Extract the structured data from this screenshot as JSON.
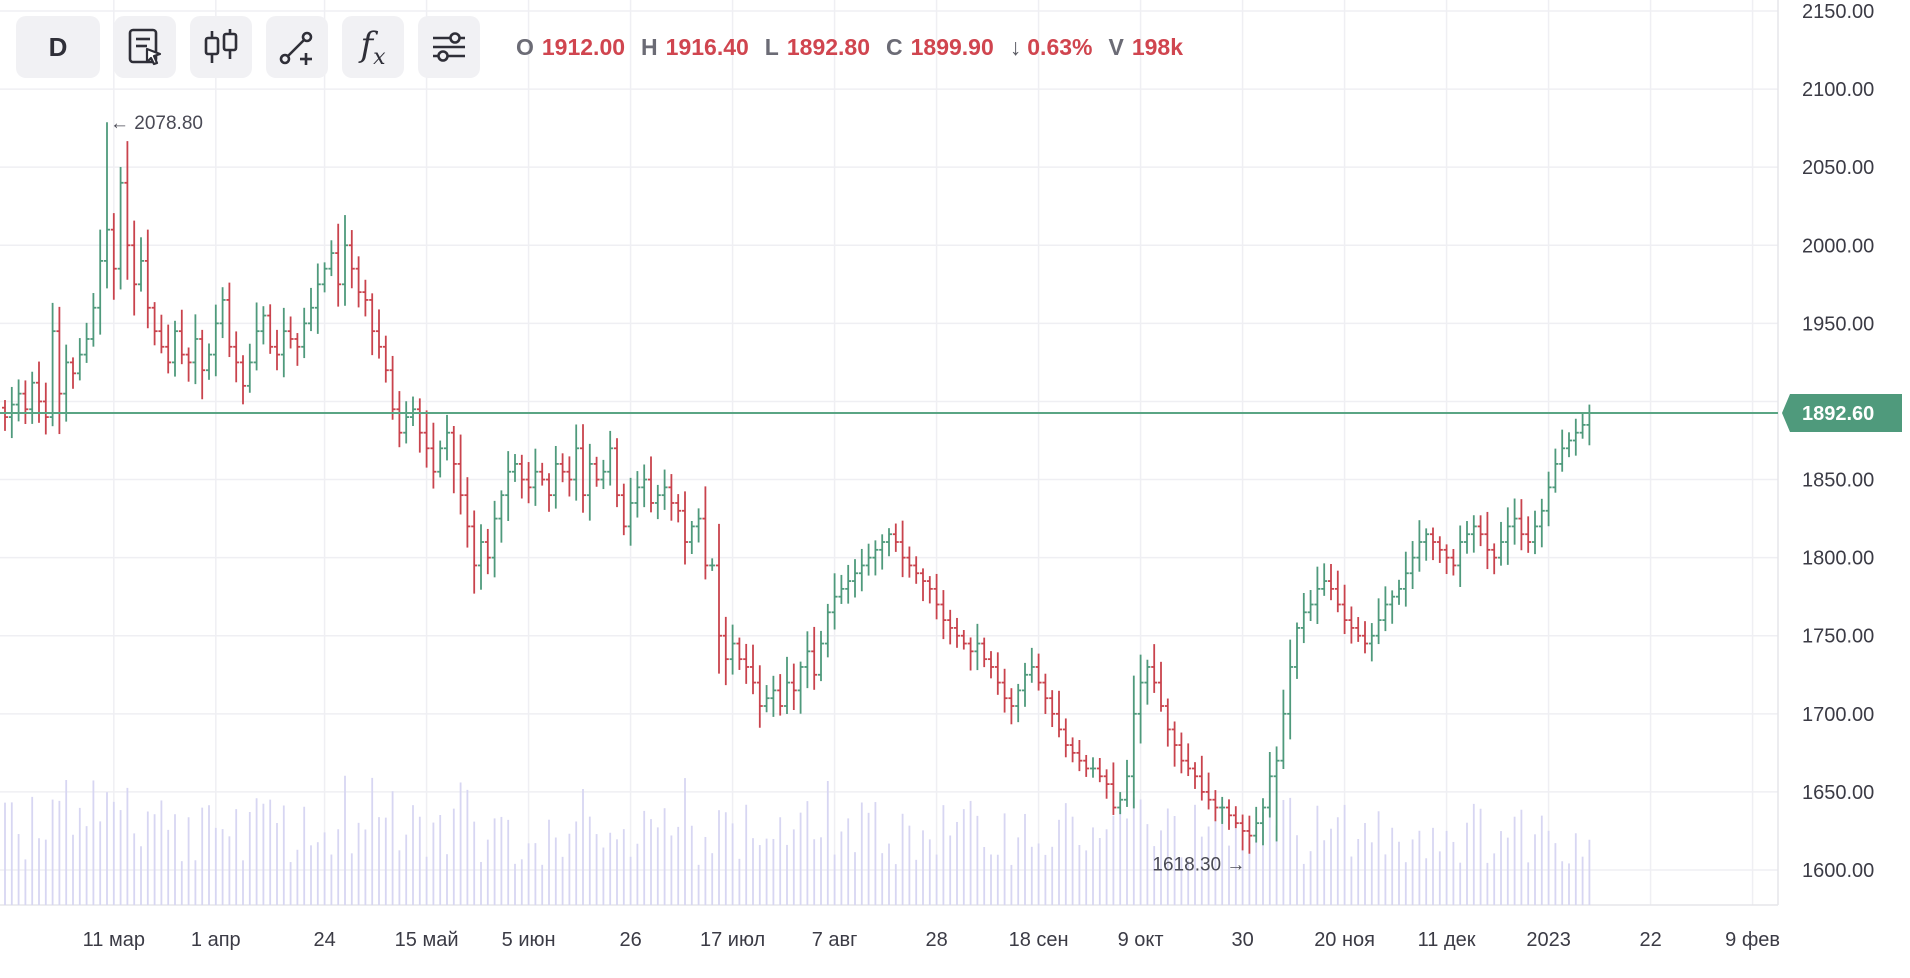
{
  "toolbar": {
    "period_label": "D",
    "buttons": [
      {
        "name": "template-cursor-icon"
      },
      {
        "name": "candles-type-icon"
      },
      {
        "name": "drawing-tools-icon"
      },
      {
        "name": "indicators-fx-icon"
      },
      {
        "name": "settings-sliders-icon"
      }
    ],
    "fx_text": "f",
    "fx_sub": "x"
  },
  "ohlc": {
    "o_label": "O",
    "o_value": "1912.00",
    "h_label": "H",
    "h_value": "1916.40",
    "l_label": "L",
    "l_value": "1892.80",
    "c_label": "C",
    "c_value": "1899.90",
    "change_arrow": "↓",
    "change_value": "0.63%",
    "v_label": "V",
    "v_value": "198k"
  },
  "colors": {
    "up": "#4f9a7c",
    "down": "#c9434d",
    "volume": "#d7d6f2",
    "grid": "#efeff3",
    "price_line": "#5aa584",
    "price_tag": "#4f9a7c"
  },
  "annotations": {
    "max": "← 2078.80",
    "min": "1618.30 →"
  },
  "chart_data": {
    "type": "ohlc",
    "ylim": [
      1580,
      2150
    ],
    "y_ticks": [
      "2150.00",
      "2100.00",
      "2050.00",
      "2000.00",
      "1950.00",
      "1900.00",
      "1850.00",
      "1800.00",
      "1750.00",
      "1700.00",
      "1650.00",
      "1600.00"
    ],
    "y_tick_values": [
      2150,
      2100,
      2050,
      2000,
      1950,
      1900,
      1850,
      1800,
      1750,
      1700,
      1650,
      1600
    ],
    "x_labels": [
      "11 мар",
      "1 апр",
      "24",
      "15 май",
      "5 июн",
      "26",
      "17 июл",
      "7 авг",
      "28",
      "18 сен",
      "9 окт",
      "30",
      "20 ноя",
      "11 дек",
      "2023",
      "22",
      "9 фев"
    ],
    "x_label_bars": [
      16,
      31,
      47,
      62,
      77,
      92,
      107,
      122,
      137,
      152,
      167,
      182,
      197,
      212,
      227,
      242,
      257
    ],
    "current_price": "1892.60",
    "current_price_value": 1892.6,
    "max_label_value": 2078.8,
    "min_label_value": 1618.3,
    "closes": [
      1890,
      1898,
      1905,
      1895,
      1912,
      1900,
      1890,
      1945,
      1905,
      1925,
      1918,
      1930,
      1940,
      1960,
      1990,
      2010,
      1985,
      2040,
      2000,
      1975,
      1990,
      1960,
      1945,
      1935,
      1925,
      1945,
      1930,
      1925,
      1940,
      1920,
      1930,
      1950,
      1965,
      1935,
      1925,
      1910,
      1925,
      1945,
      1955,
      1935,
      1930,
      1945,
      1940,
      1935,
      1950,
      1960,
      1975,
      1985,
      1995,
      1975,
      2000,
      1985,
      1970,
      1965,
      1945,
      1935,
      1920,
      1895,
      1880,
      1890,
      1895,
      1880,
      1870,
      1855,
      1870,
      1880,
      1860,
      1840,
      1820,
      1795,
      1810,
      1800,
      1825,
      1840,
      1855,
      1860,
      1850,
      1845,
      1855,
      1850,
      1840,
      1860,
      1855,
      1850,
      1870,
      1840,
      1860,
      1850,
      1855,
      1870,
      1840,
      1820,
      1835,
      1845,
      1850,
      1835,
      1840,
      1845,
      1835,
      1830,
      1810,
      1820,
      1825,
      1795,
      1795,
      1750,
      1735,
      1745,
      1735,
      1730,
      1720,
      1705,
      1710,
      1715,
      1705,
      1720,
      1715,
      1730,
      1740,
      1725,
      1745,
      1765,
      1775,
      1780,
      1785,
      1790,
      1795,
      1800,
      1805,
      1810,
      1815,
      1810,
      1800,
      1795,
      1790,
      1785,
      1780,
      1770,
      1760,
      1755,
      1750,
      1745,
      1740,
      1745,
      1735,
      1730,
      1720,
      1710,
      1705,
      1715,
      1725,
      1730,
      1720,
      1710,
      1700,
      1690,
      1680,
      1675,
      1670,
      1665,
      1665,
      1660,
      1655,
      1640,
      1645,
      1660,
      1700,
      1720,
      1730,
      1720,
      1705,
      1690,
      1680,
      1670,
      1665,
      1660,
      1650,
      1645,
      1640,
      1640,
      1635,
      1630,
      1625,
      1622,
      1630,
      1640,
      1660,
      1670,
      1700,
      1730,
      1755,
      1765,
      1770,
      1780,
      1785,
      1780,
      1770,
      1760,
      1755,
      1750,
      1745,
      1750,
      1760,
      1770,
      1775,
      1780,
      1790,
      1800,
      1810,
      1815,
      1810,
      1805,
      1800,
      1795,
      1810,
      1815,
      1820,
      1815,
      1805,
      1800,
      1810,
      1820,
      1825,
      1815,
      1810,
      1820,
      1830,
      1845,
      1860,
      1870,
      1875,
      1880,
      1885,
      1892.6
    ]
  }
}
